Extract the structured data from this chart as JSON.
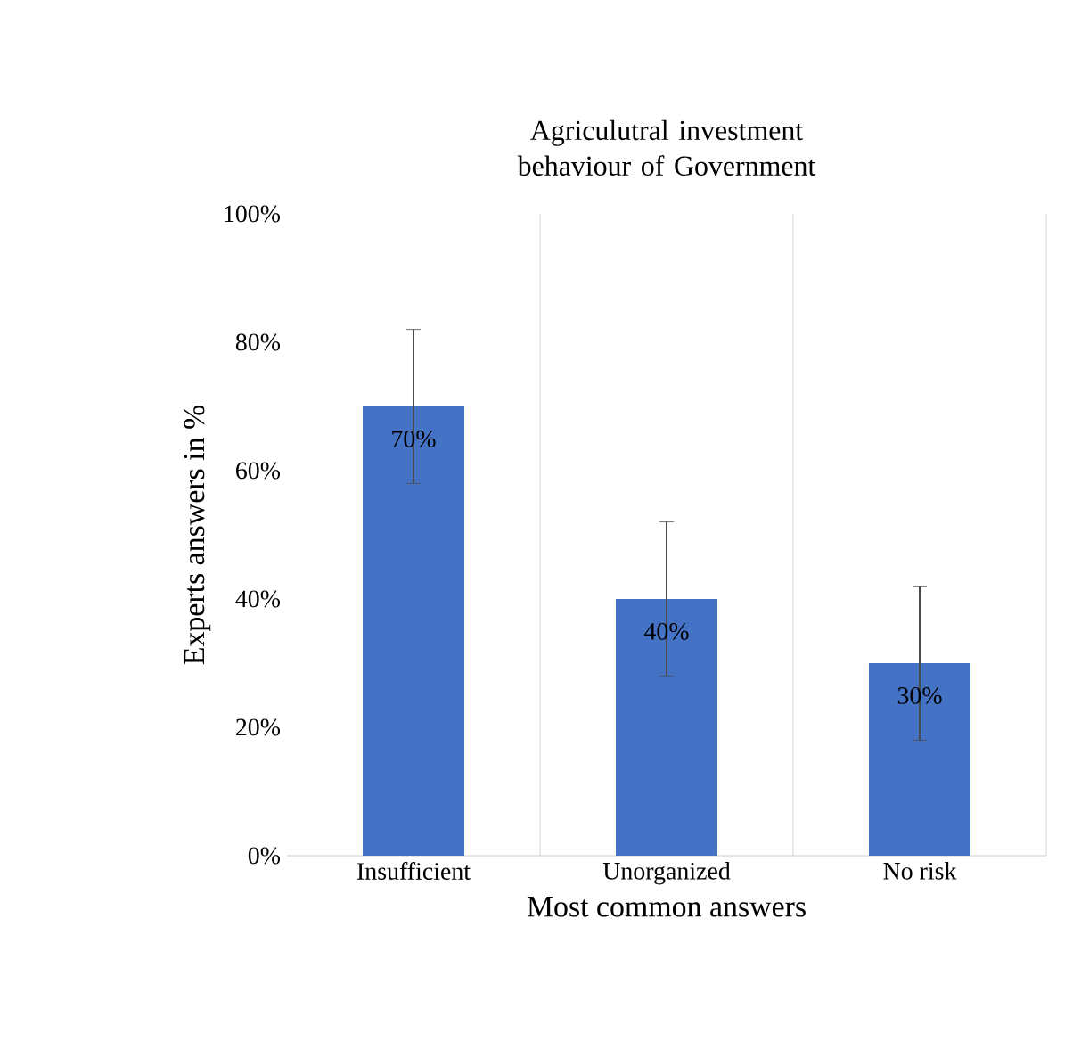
{
  "chart_data": {
    "type": "bar",
    "title": "Agriculutral investment behaviour of Government",
    "xlabel": "Most common answers",
    "ylabel": "Experts answers in %",
    "categories": [
      "Insufficient",
      "Unorganized",
      "No risk"
    ],
    "values": [
      70,
      40,
      30
    ],
    "errors": [
      12,
      12,
      12
    ],
    "value_labels": [
      "70%",
      "40%",
      "30%"
    ],
    "color": "#4472c4",
    "ylim": [
      0,
      100
    ],
    "yticks": [
      {
        "value": 0,
        "label": "0%"
      },
      {
        "value": 20,
        "label": "20%"
      },
      {
        "value": 40,
        "label": "40%"
      },
      {
        "value": 60,
        "label": "60%"
      },
      {
        "value": 80,
        "label": "80%"
      },
      {
        "value": 100,
        "label": "100%"
      }
    ],
    "grid": "x"
  }
}
